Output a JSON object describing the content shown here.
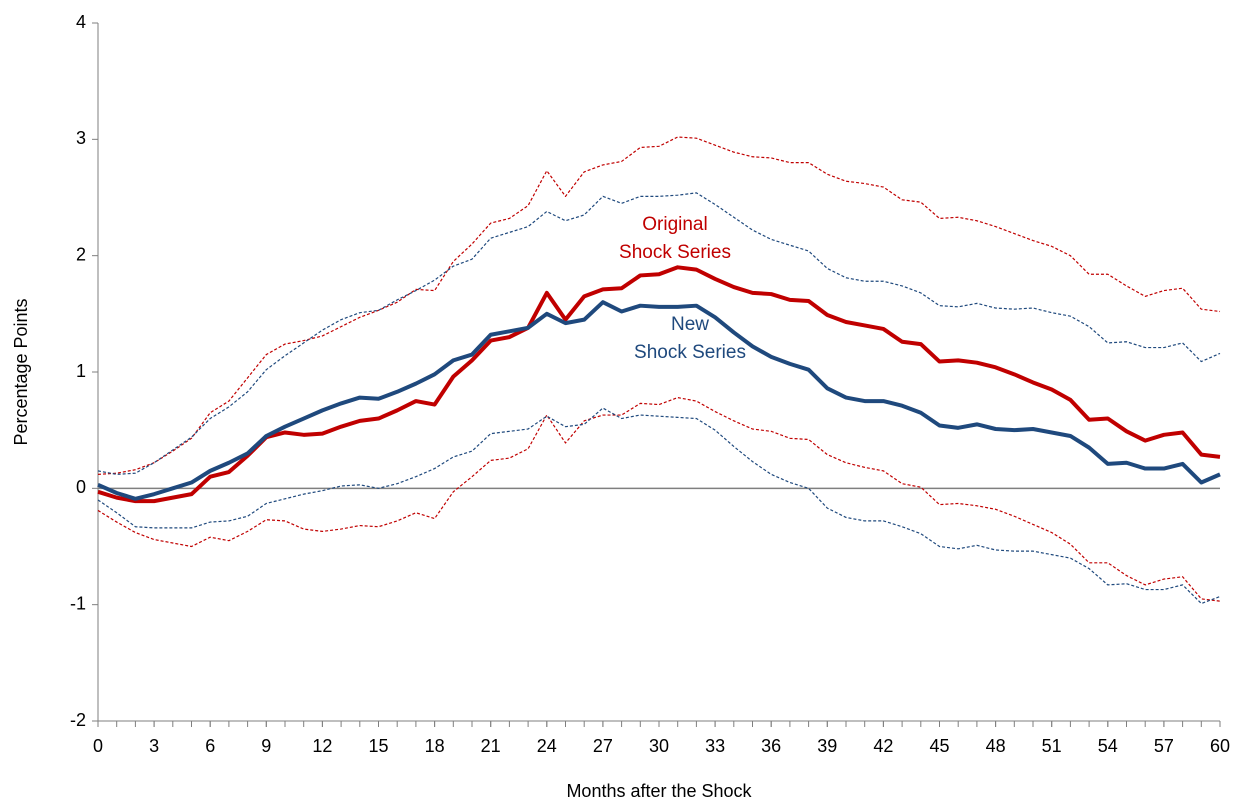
{
  "chart_data": {
    "type": "line",
    "y_label": "Percentage Points",
    "x_label": "Months after the Shock",
    "annotations": [
      {
        "lines": [
          "Original",
          "Shock Series"
        ],
        "color": "#c00000"
      },
      {
        "lines": [
          "New",
          "Shock Series"
        ],
        "color": "#1f497d"
      }
    ],
    "x": [
      0,
      1,
      2,
      3,
      4,
      5,
      6,
      7,
      8,
      9,
      10,
      11,
      12,
      13,
      14,
      15,
      16,
      17,
      18,
      19,
      20,
      21,
      22,
      23,
      24,
      25,
      26,
      27,
      28,
      29,
      30,
      31,
      32,
      33,
      34,
      35,
      36,
      37,
      38,
      39,
      40,
      41,
      42,
      43,
      44,
      45,
      46,
      47,
      48,
      49,
      50,
      51,
      52,
      53,
      54,
      55,
      56,
      57,
      58,
      59,
      60
    ],
    "series": [
      {
        "color": "#c00000",
        "dashed": true,
        "values": [
          0.12,
          0.13,
          0.16,
          0.22,
          0.32,
          0.43,
          0.65,
          0.75,
          0.95,
          1.15,
          1.24,
          1.27,
          1.31,
          1.39,
          1.47,
          1.53,
          1.6,
          1.71,
          1.7,
          1.95,
          2.1,
          2.28,
          2.32,
          2.43,
          2.73,
          2.51,
          2.72,
          2.78,
          2.81,
          2.93,
          2.94,
          3.02,
          3.01,
          2.95,
          2.89,
          2.85,
          2.84,
          2.8,
          2.8,
          2.7,
          2.64,
          2.62,
          2.59,
          2.48,
          2.46,
          2.32,
          2.33,
          2.3,
          2.25,
          2.19,
          2.13,
          2.08,
          2.0,
          1.84,
          1.84,
          1.74,
          1.65,
          1.7,
          1.72,
          1.54,
          1.52
        ]
      },
      {
        "color": "#c00000",
        "dashed": true,
        "values": [
          -0.19,
          -0.29,
          -0.38,
          -0.44,
          -0.47,
          -0.5,
          -0.42,
          -0.45,
          -0.37,
          -0.27,
          -0.28,
          -0.35,
          -0.37,
          -0.35,
          -0.32,
          -0.33,
          -0.28,
          -0.21,
          -0.26,
          -0.03,
          0.1,
          0.24,
          0.26,
          0.34,
          0.63,
          0.39,
          0.58,
          0.63,
          0.63,
          0.73,
          0.72,
          0.78,
          0.75,
          0.66,
          0.58,
          0.51,
          0.49,
          0.43,
          0.42,
          0.29,
          0.22,
          0.18,
          0.15,
          0.04,
          0.01,
          -0.14,
          -0.13,
          -0.15,
          -0.18,
          -0.24,
          -0.31,
          -0.38,
          -0.48,
          -0.64,
          -0.64,
          -0.75,
          -0.83,
          -0.78,
          -0.76,
          -0.95,
          -0.97
        ]
      },
      {
        "color": "#1f497d",
        "dashed": true,
        "values": [
          0.15,
          0.12,
          0.13,
          0.22,
          0.33,
          0.44,
          0.6,
          0.7,
          0.83,
          1.02,
          1.14,
          1.25,
          1.36,
          1.45,
          1.51,
          1.53,
          1.62,
          1.7,
          1.79,
          1.91,
          1.97,
          2.15,
          2.2,
          2.25,
          2.38,
          2.3,
          2.35,
          2.51,
          2.45,
          2.51,
          2.51,
          2.52,
          2.54,
          2.44,
          2.33,
          2.22,
          2.14,
          2.09,
          2.04,
          1.89,
          1.81,
          1.78,
          1.78,
          1.74,
          1.68,
          1.57,
          1.56,
          1.59,
          1.55,
          1.54,
          1.55,
          1.51,
          1.48,
          1.39,
          1.25,
          1.26,
          1.21,
          1.21,
          1.25,
          1.09,
          1.16
        ]
      },
      {
        "color": "#1f497d",
        "dashed": true,
        "values": [
          -0.1,
          -0.21,
          -0.33,
          -0.34,
          -0.34,
          -0.34,
          -0.29,
          -0.28,
          -0.24,
          -0.13,
          -0.09,
          -0.05,
          -0.02,
          0.02,
          0.03,
          0.0,
          0.04,
          0.1,
          0.17,
          0.27,
          0.32,
          0.47,
          0.49,
          0.51,
          0.62,
          0.53,
          0.55,
          0.69,
          0.6,
          0.63,
          0.62,
          0.61,
          0.6,
          0.5,
          0.36,
          0.23,
          0.12,
          0.05,
          0.0,
          -0.17,
          -0.25,
          -0.28,
          -0.28,
          -0.33,
          -0.39,
          -0.5,
          -0.52,
          -0.49,
          -0.53,
          -0.54,
          -0.54,
          -0.57,
          -0.6,
          -0.69,
          -0.83,
          -0.82,
          -0.87,
          -0.87,
          -0.83,
          -0.99,
          -0.93
        ]
      },
      {
        "color": "#c00000",
        "dashed": false,
        "values": [
          -0.03,
          -0.08,
          -0.11,
          -0.11,
          -0.08,
          -0.05,
          0.1,
          0.14,
          0.28,
          0.44,
          0.48,
          0.46,
          0.47,
          0.53,
          0.58,
          0.6,
          0.67,
          0.75,
          0.72,
          0.96,
          1.1,
          1.27,
          1.3,
          1.38,
          1.68,
          1.45,
          1.65,
          1.71,
          1.72,
          1.83,
          1.84,
          1.9,
          1.88,
          1.8,
          1.73,
          1.68,
          1.67,
          1.62,
          1.61,
          1.49,
          1.43,
          1.4,
          1.37,
          1.26,
          1.24,
          1.09,
          1.1,
          1.08,
          1.04,
          0.98,
          0.91,
          0.85,
          0.76,
          0.59,
          0.6,
          0.49,
          0.41,
          0.46,
          0.48,
          0.29,
          0.27
        ]
      },
      {
        "color": "#1f497d",
        "dashed": false,
        "values": [
          0.03,
          -0.04,
          -0.09,
          -0.05,
          0.0,
          0.05,
          0.15,
          0.22,
          0.3,
          0.45,
          0.53,
          0.6,
          0.67,
          0.73,
          0.78,
          0.77,
          0.83,
          0.9,
          0.98,
          1.1,
          1.15,
          1.32,
          1.35,
          1.38,
          1.5,
          1.42,
          1.45,
          1.6,
          1.52,
          1.57,
          1.56,
          1.56,
          1.57,
          1.47,
          1.34,
          1.22,
          1.13,
          1.07,
          1.02,
          0.86,
          0.78,
          0.75,
          0.75,
          0.71,
          0.65,
          0.54,
          0.52,
          0.55,
          0.51,
          0.5,
          0.51,
          0.48,
          0.45,
          0.35,
          0.21,
          0.22,
          0.17,
          0.17,
          0.21,
          0.05,
          0.12
        ]
      }
    ],
    "xlim": [
      0,
      60
    ],
    "xticks": [
      0,
      3,
      6,
      9,
      12,
      15,
      18,
      21,
      24,
      27,
      30,
      33,
      36,
      39,
      42,
      45,
      48,
      51,
      54,
      57,
      60
    ],
    "ylim": [
      -2,
      4
    ],
    "yticks": [
      -2,
      -1,
      0,
      1,
      2,
      3,
      4
    ],
    "grid": false
  }
}
